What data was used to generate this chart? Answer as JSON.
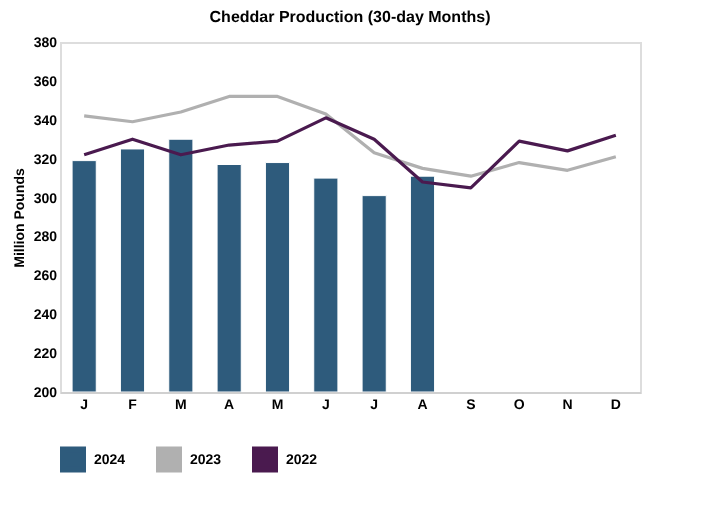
{
  "chart_data": {
    "type": "bar",
    "title": "Cheddar Production (30-day Months)",
    "ylabel": "Million Pounds",
    "categories": [
      "J",
      "F",
      "M",
      "A",
      "M",
      "J",
      "J",
      "A",
      "S",
      "O",
      "N",
      "D"
    ],
    "series": [
      {
        "name": "2024",
        "color": "#2e5b7c",
        "values": [
          319,
          325,
          330,
          317,
          318,
          310,
          301,
          311,
          null,
          null,
          null,
          null
        ]
      },
      {
        "name": "2023",
        "type": "line",
        "color": "#b0b0b0",
        "values": [
          342,
          339,
          344,
          352,
          352,
          343,
          323,
          315,
          311,
          318,
          314,
          321
        ]
      },
      {
        "name": "2022",
        "type": "line",
        "color": "#4a1a4f",
        "values": [
          322,
          330,
          322,
          327,
          329,
          341,
          330,
          308,
          305,
          329,
          324,
          332
        ]
      }
    ],
    "ylim": [
      200,
      380
    ],
    "yticks": [
      200,
      220,
      240,
      260,
      280,
      300,
      320,
      340,
      360,
      380
    ],
    "grid": false,
    "legend": "bottom"
  }
}
